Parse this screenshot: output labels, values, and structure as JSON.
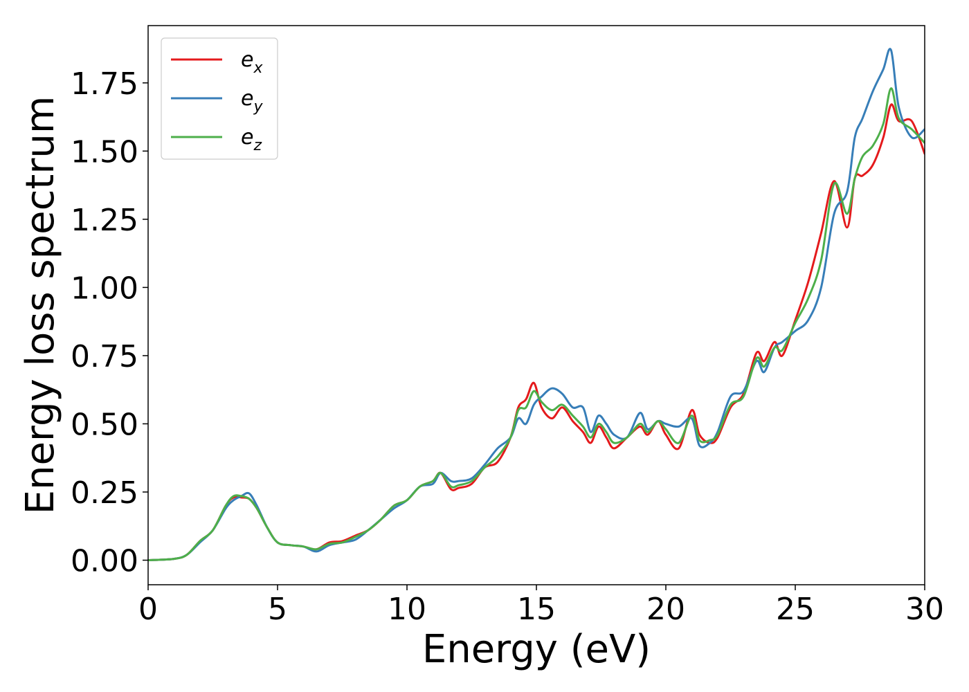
{
  "chart_data": {
    "type": "line",
    "xlabel": "Energy (eV)",
    "ylabel": "Energy loss spectrum",
    "xlim": [
      0,
      30
    ],
    "ylim": [
      -0.09,
      1.96
    ],
    "xticks": [
      0,
      5,
      10,
      15,
      20,
      25,
      30
    ],
    "xtick_labels": [
      "0",
      "5",
      "10",
      "15",
      "20",
      "25",
      "30"
    ],
    "yticks": [
      0,
      0.25,
      0.5,
      0.75,
      1.0,
      1.25,
      1.5,
      1.75
    ],
    "ytick_labels": [
      "0.00",
      "0.25",
      "0.50",
      "0.75",
      "1.00",
      "1.25",
      "1.50",
      "1.75"
    ],
    "grid": false,
    "legend_position": "top-left",
    "series": [
      {
        "name": "e_x",
        "label_base": "e",
        "label_sub": "x",
        "color": "#e41a1c",
        "x": [
          0,
          1,
          1.5,
          2,
          2.5,
          3,
          3.3,
          3.6,
          3.9,
          4.2,
          4.6,
          5,
          5.5,
          6,
          6.5,
          7,
          7.5,
          8,
          8.5,
          9,
          9.5,
          10,
          10.5,
          11,
          11.3,
          11.7,
          12,
          12.5,
          13,
          13.5,
          14,
          14.3,
          14.6,
          14.9,
          15.2,
          15.6,
          16,
          16.4,
          16.8,
          17.1,
          17.4,
          17.7,
          18,
          18.5,
          19,
          19.3,
          19.7,
          20,
          20.5,
          21,
          21.3,
          21.7,
          22,
          22.5,
          23,
          23.5,
          23.8,
          24.2,
          24.5,
          25,
          25.5,
          26,
          26.5,
          27,
          27.3,
          27.6,
          28,
          28.4,
          28.7,
          29,
          29.5,
          30
        ],
        "y": [
          0,
          0.005,
          0.02,
          0.07,
          0.11,
          0.2,
          0.23,
          0.23,
          0.225,
          0.19,
          0.12,
          0.065,
          0.055,
          0.05,
          0.04,
          0.065,
          0.07,
          0.09,
          0.11,
          0.15,
          0.2,
          0.22,
          0.27,
          0.29,
          0.32,
          0.26,
          0.265,
          0.28,
          0.34,
          0.36,
          0.45,
          0.56,
          0.59,
          0.65,
          0.56,
          0.52,
          0.56,
          0.51,
          0.47,
          0.43,
          0.49,
          0.45,
          0.41,
          0.45,
          0.49,
          0.46,
          0.51,
          0.46,
          0.41,
          0.55,
          0.46,
          0.43,
          0.45,
          0.56,
          0.61,
          0.76,
          0.73,
          0.8,
          0.75,
          0.88,
          1.02,
          1.2,
          1.39,
          1.22,
          1.4,
          1.41,
          1.45,
          1.55,
          1.67,
          1.61,
          1.61,
          1.49
        ]
      },
      {
        "name": "e_y",
        "label_base": "e",
        "label_sub": "y",
        "color": "#377eb8",
        "x": [
          0,
          1,
          1.5,
          2,
          2.5,
          3,
          3.3,
          3.6,
          3.9,
          4.2,
          4.6,
          5,
          5.5,
          6,
          6.5,
          7,
          7.5,
          8,
          8.5,
          9,
          9.5,
          10,
          10.5,
          11,
          11.3,
          11.7,
          12,
          12.5,
          13,
          13.5,
          14,
          14.3,
          14.6,
          14.9,
          15.2,
          15.6,
          16,
          16.4,
          16.8,
          17.1,
          17.4,
          17.7,
          18,
          18.5,
          19,
          19.3,
          19.7,
          20,
          20.5,
          21,
          21.3,
          21.7,
          22,
          22.5,
          23,
          23.5,
          23.8,
          24.2,
          24.5,
          25,
          25.5,
          26,
          26.5,
          27,
          27.3,
          27.6,
          28,
          28.4,
          28.7,
          29,
          29.5,
          30
        ],
        "y": [
          0,
          0.005,
          0.02,
          0.065,
          0.11,
          0.19,
          0.22,
          0.235,
          0.245,
          0.2,
          0.12,
          0.065,
          0.055,
          0.05,
          0.032,
          0.055,
          0.065,
          0.075,
          0.11,
          0.15,
          0.19,
          0.22,
          0.27,
          0.28,
          0.32,
          0.29,
          0.29,
          0.3,
          0.35,
          0.41,
          0.45,
          0.52,
          0.5,
          0.57,
          0.6,
          0.63,
          0.61,
          0.56,
          0.56,
          0.47,
          0.53,
          0.5,
          0.46,
          0.45,
          0.54,
          0.48,
          0.51,
          0.5,
          0.49,
          0.52,
          0.42,
          0.43,
          0.47,
          0.6,
          0.62,
          0.73,
          0.69,
          0.78,
          0.8,
          0.84,
          0.88,
          1.0,
          1.27,
          1.35,
          1.55,
          1.62,
          1.72,
          1.8,
          1.87,
          1.66,
          1.55,
          1.58
        ]
      },
      {
        "name": "e_z",
        "label_base": "e",
        "label_sub": "z",
        "color": "#4daf4a",
        "x": [
          0,
          1,
          1.5,
          2,
          2.5,
          3,
          3.3,
          3.6,
          3.9,
          4.2,
          4.6,
          5,
          5.5,
          6,
          6.5,
          7,
          7.5,
          8,
          8.5,
          9,
          9.5,
          10,
          10.5,
          11,
          11.3,
          11.7,
          12,
          12.5,
          13,
          13.5,
          14,
          14.3,
          14.6,
          14.9,
          15.2,
          15.6,
          16,
          16.4,
          16.8,
          17.1,
          17.4,
          17.7,
          18,
          18.5,
          19,
          19.3,
          19.7,
          20,
          20.5,
          21,
          21.3,
          21.7,
          22,
          22.5,
          23,
          23.5,
          23.8,
          24.2,
          24.5,
          25,
          25.5,
          26,
          26.5,
          27,
          27.3,
          27.6,
          28,
          28.4,
          28.7,
          29,
          29.5,
          30
        ],
        "y": [
          0,
          0.005,
          0.02,
          0.07,
          0.11,
          0.2,
          0.235,
          0.235,
          0.225,
          0.19,
          0.12,
          0.065,
          0.055,
          0.05,
          0.04,
          0.06,
          0.065,
          0.085,
          0.11,
          0.15,
          0.2,
          0.22,
          0.27,
          0.29,
          0.32,
          0.27,
          0.275,
          0.29,
          0.34,
          0.38,
          0.45,
          0.55,
          0.56,
          0.62,
          0.58,
          0.55,
          0.57,
          0.53,
          0.49,
          0.45,
          0.5,
          0.47,
          0.43,
          0.45,
          0.5,
          0.47,
          0.51,
          0.48,
          0.43,
          0.53,
          0.44,
          0.44,
          0.46,
          0.57,
          0.6,
          0.74,
          0.71,
          0.78,
          0.77,
          0.87,
          0.96,
          1.1,
          1.38,
          1.27,
          1.4,
          1.48,
          1.52,
          1.6,
          1.73,
          1.62,
          1.58,
          1.53
        ]
      }
    ]
  }
}
